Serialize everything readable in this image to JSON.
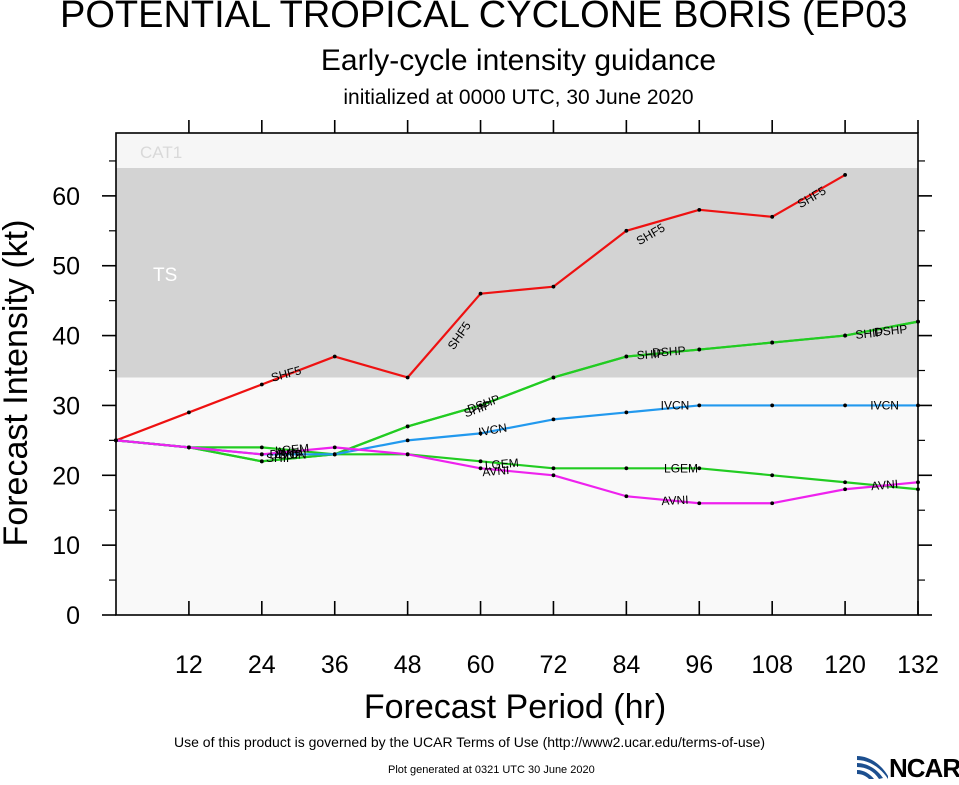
{
  "title": "POTENTIAL TROPICAL CYCLONE BORIS (EP03",
  "subtitle": "Early-cycle intensity guidance",
  "initialized": "initialized at 0000 UTC, 30 June 2020",
  "terms": "Use of this product is governed by the UCAR Terms of Use (http://www2.ucar.edu/terms-of-use)",
  "plot_generated": "Plot generated at 0321 UTC   30 June 2020",
  "logo_text": "NCAR",
  "colors": {
    "ts_band": "#d3d3d3",
    "cat1_band": "#f6f6f6",
    "below_band": "#f9f9f9",
    "band_label": "#ffffff",
    "cat1_label": "#d9d9d9"
  },
  "chart_data": {
    "type": "line",
    "xlabel": "Forecast Period (hr)",
    "ylabel": "Forecast Intensity (kt)",
    "xlim": [
      0,
      132
    ],
    "ylim": [
      0,
      69
    ],
    "xticks": [
      12,
      24,
      36,
      48,
      60,
      72,
      84,
      96,
      108,
      120,
      132
    ],
    "yticks": [
      0,
      10,
      20,
      30,
      40,
      50,
      60
    ],
    "bands": [
      {
        "label": "TS",
        "from": 34,
        "to": 64
      },
      {
        "label": "CAT1",
        "from": 64,
        "to": 69
      }
    ],
    "series": [
      {
        "name": "SHF5",
        "color": "#ee1111",
        "x": [
          0,
          12,
          24,
          36,
          48,
          60,
          72,
          84,
          96,
          108,
          120
        ],
        "values": [
          25,
          29,
          33,
          37,
          34,
          46,
          47,
          55,
          58,
          57,
          63
        ],
        "labels": [
          {
            "text": "SHF5",
            "x": 28,
            "y": 34.5,
            "angle": -15
          },
          {
            "text": "SHF5",
            "x": 56.5,
            "y": 40,
            "angle": -55
          },
          {
            "text": "SHF5",
            "x": 88,
            "y": 54.5,
            "angle": -30
          },
          {
            "text": "SHF5",
            "x": 114.5,
            "y": 59.8,
            "angle": -30
          }
        ]
      },
      {
        "name": "DSHP",
        "color": "#22cc22",
        "x": [
          0,
          12,
          24,
          36,
          48,
          60,
          72,
          84,
          96,
          108,
          120,
          132
        ],
        "values": [
          25,
          24,
          22,
          23,
          27,
          30,
          34,
          37,
          38,
          39,
          40,
          42
        ],
        "labels": [
          {
            "text": "DSHP",
            "x": 28,
            "y": 23,
            "angle": 0
          },
          {
            "text": "DSHP",
            "x": 60.5,
            "y": 30.2,
            "angle": -20
          },
          {
            "text": "DSHP",
            "x": 91,
            "y": 37.7,
            "angle": -4
          },
          {
            "text": "DSHP",
            "x": 127.5,
            "y": 40.7,
            "angle": -6
          }
        ]
      },
      {
        "name": "SHIP",
        "color": "#22cc22",
        "x": [
          0,
          12,
          24,
          36,
          48,
          60,
          72,
          84,
          96,
          108,
          120,
          132
        ],
        "values": [
          25,
          24,
          22,
          23,
          27,
          30,
          34,
          37,
          38,
          39,
          40,
          42
        ],
        "labels": [
          {
            "text": "SHIP",
            "x": 27,
            "y": 22.5,
            "angle": 0
          },
          {
            "text": "SHIP",
            "x": 59.5,
            "y": 29.5,
            "angle": -20
          },
          {
            "text": "SHIP",
            "x": 88,
            "y": 37.3,
            "angle": -4
          },
          {
            "text": "SHIP",
            "x": 124,
            "y": 40.3,
            "angle": -6
          }
        ]
      },
      {
        "name": "LGEM",
        "color": "#22cc22",
        "x": [
          0,
          12,
          24,
          36,
          48,
          60,
          72,
          84,
          96,
          108,
          120,
          132
        ],
        "values": [
          25,
          24,
          24,
          23,
          23,
          22,
          21,
          21,
          21,
          20,
          19,
          18
        ],
        "labels": [
          {
            "text": "LGEM",
            "x": 29,
            "y": 23.7,
            "angle": -5
          },
          {
            "text": "LGEM",
            "x": 63.5,
            "y": 21.6,
            "angle": -5
          },
          {
            "text": "LGEM",
            "x": 93,
            "y": 21,
            "angle": 0
          }
        ]
      },
      {
        "name": "IVCN",
        "color": "#2299ee",
        "x": [
          0,
          12,
          24,
          36,
          48,
          60,
          72,
          84,
          96,
          108,
          120,
          132
        ],
        "values": [
          25,
          24,
          23,
          23,
          25,
          26,
          28,
          29,
          30,
          30,
          30,
          30
        ],
        "labels": [
          {
            "text": "IVCN",
            "x": 29,
            "y": 23,
            "angle": 0
          },
          {
            "text": "IVCN",
            "x": 62,
            "y": 26.5,
            "angle": -10
          },
          {
            "text": "IVCN",
            "x": 92,
            "y": 30,
            "angle": 0
          },
          {
            "text": "IVCN",
            "x": 126.5,
            "y": 30,
            "angle": 0
          }
        ]
      },
      {
        "name": "AVNI",
        "color": "#ee22ee",
        "x": [
          0,
          12,
          24,
          36,
          48,
          60,
          72,
          84,
          96,
          108,
          120,
          132
        ],
        "values": [
          25,
          24,
          23,
          24,
          23,
          21,
          20,
          17,
          16,
          16,
          18,
          19
        ],
        "labels": [
          {
            "text": "AVNI",
            "x": 28.5,
            "y": 23.3,
            "angle": 0
          },
          {
            "text": "AVNI",
            "x": 62.5,
            "y": 20.6,
            "angle": -5
          },
          {
            "text": "AVNI",
            "x": 92,
            "y": 16.4,
            "angle": -3
          },
          {
            "text": "AVNI",
            "x": 126.5,
            "y": 18.6,
            "angle": -5
          }
        ]
      }
    ]
  }
}
